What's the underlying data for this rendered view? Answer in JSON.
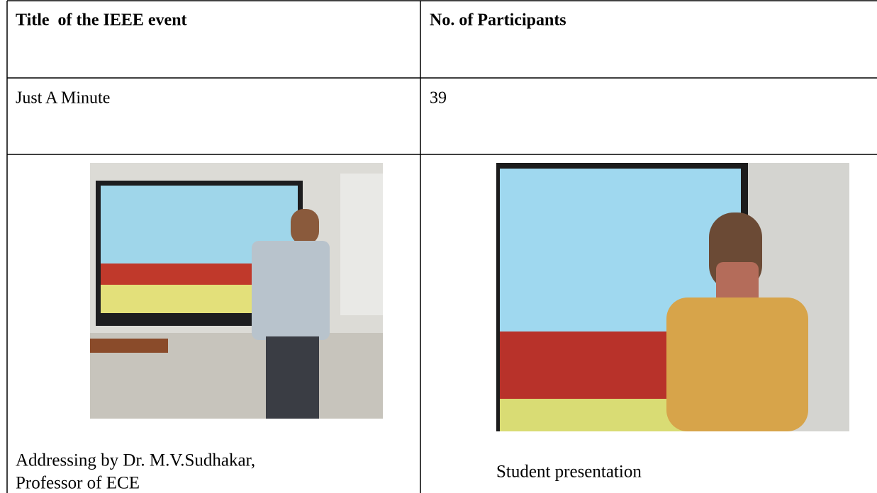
{
  "table": {
    "header": [
      "Title  of the IEEE event",
      "No. of Participants"
    ],
    "rows": [
      [
        "Just A Minute",
        "39"
      ]
    ],
    "photos": [
      {
        "caption": [
          "Addressing by Dr. M.V.Sudhakar,",
          "Professor of ECE"
        ]
      },
      {
        "caption": [
          "Student presentation"
        ]
      }
    ]
  }
}
